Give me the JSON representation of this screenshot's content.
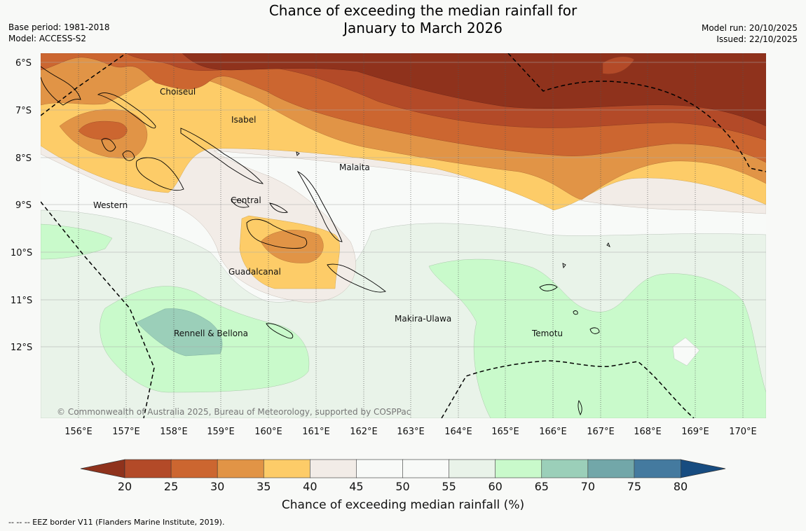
{
  "title_line1": "Chance of exceeding the median rainfall for",
  "title_line2": "January to March 2026",
  "base_period": "Base period: 1981-2018",
  "model": "Model: ACCESS-S2",
  "model_run": "Model run: 20/10/2025",
  "issued": "Issued: 22/10/2025",
  "regions": {
    "choiseul": "Choiseul",
    "isabel": "Isabel",
    "malaita": "Malaita",
    "central": "Central",
    "western": "Western",
    "guadalcanal": "Guadalcanal",
    "makira": "Makira-Ulawa",
    "temotu": "Temotu",
    "rennell": "Rennell & Bellona"
  },
  "lat_ticks": [
    "6°S",
    "7°S",
    "8°S",
    "9°S",
    "10°S",
    "11°S",
    "12°S"
  ],
  "lon_ticks": [
    "156°E",
    "157°E",
    "158°E",
    "159°E",
    "160°E",
    "161°E",
    "162°E",
    "163°E",
    "164°E",
    "165°E",
    "166°E",
    "167°E",
    "168°E",
    "169°E",
    "170°E"
  ],
  "copyright": "© Commonwealth of Australia 2025, Bureau of Meteorology, supported by COSPPac",
  "colorbar": {
    "title": "Chance of exceeding median rainfall (%)",
    "ticks": [
      "20",
      "25",
      "30",
      "35",
      "40",
      "45",
      "50",
      "55",
      "60",
      "65",
      "70",
      "75",
      "80"
    ],
    "colors": [
      "#8f321c",
      "#b34a28",
      "#cc6630",
      "#e19446",
      "#fdcc68",
      "#f2ece7",
      "#f8faf8",
      "#f8faf8",
      "#e9f3e9",
      "#c9facb",
      "#9bcfb9",
      "#72a7a9",
      "#447a9f",
      "#174c80"
    ]
  },
  "footnote": "--  --  -- EEZ border V11 (Flanders Marine Institute, 2019)."
}
